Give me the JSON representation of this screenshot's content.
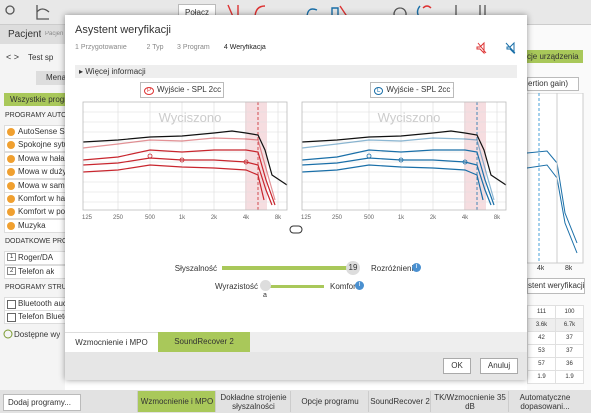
{
  "toolbar": {
    "connect": "Połącz"
  },
  "patient_panel": {
    "title": "Pacjent",
    "subtitle": "Pacjen",
    "nav_label": "Test sp",
    "menu_button": "Mena",
    "all_programs": "Wszystkie progra",
    "groups": [
      {
        "title": "PROGRAMY AUTO",
        "items": [
          "AutoSense Sk",
          "Spokojne sytu",
          "Mowa w hałas",
          "Mowa w duży",
          "Mowa w samo",
          "Komfort w ha",
          "Komfort w po",
          "Muzyka"
        ]
      },
      {
        "title": "DODATKOWE PRO",
        "items": [
          "Roger/DA",
          "Telefon ak"
        ],
        "numbers": [
          "1",
          "2"
        ]
      },
      {
        "title": "PROGRAMY STRUN",
        "items": [
          "Bluetooth auc",
          "Telefon Blueto"
        ]
      }
    ],
    "available": "Dostępne wy",
    "add_programs": "Dodaj programy..."
  },
  "bottom_tabs": [
    "Wzmocnienie i MPO",
    "Dokładne strojenie słyszalności",
    "Opcje programu",
    "SoundRecover 2",
    "TK/Wzmocnienie 35 dB",
    "Automatyczne dopasowani..."
  ],
  "right_panel": {
    "device_tab": "cje urządzenia",
    "dropdown": "ertion gain)",
    "x_labels": [
      "4k",
      "8k"
    ],
    "verify_button": "stent weryfikacji",
    "table": [
      [
        "111",
        "100"
      ],
      [
        "3.6k",
        "6.7k"
      ],
      [
        "42",
        "37"
      ],
      [
        "53",
        "37"
      ],
      [
        "57",
        "36"
      ],
      [
        "1.9",
        "1.9"
      ]
    ]
  },
  "dialog": {
    "title": "Asystent weryfikacji",
    "steps": [
      "1 Przygotowanie",
      "2 Typ",
      "3 Program",
      "4 Weryfikacja"
    ],
    "more_info": "Więcej informacji",
    "left_dropdown": "Wyjście - SPL 2cc",
    "right_dropdown": "Wyjście - SPL 2cc",
    "left_badge": "P",
    "right_badge": "L",
    "watermark": "Wyciszono",
    "x_labels": [
      "125",
      "250",
      "500",
      "1k",
      "2k",
      "4k",
      "8k"
    ],
    "slider1": {
      "left": "Słyszalność",
      "value": "19",
      "right": "Rozróżnienie"
    },
    "slider2": {
      "left": "Wyrazistość",
      "mark": "a",
      "right": "Komfort"
    },
    "tabs": [
      "Wzmocnienie i MPO",
      "SoundRecover 2"
    ],
    "ok": "OK",
    "cancel": "Anuluj"
  }
}
